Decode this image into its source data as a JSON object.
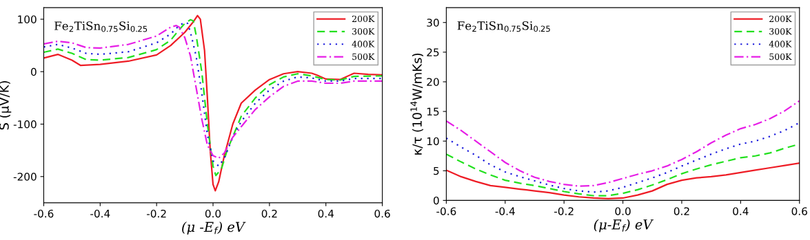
{
  "chart_data": [
    {
      "type": "line",
      "xlabel": "(μ -E$_{f}$) eV",
      "ylabel": "S (μV/K)",
      "annotations": [
        "Fe$_{2}$TiSn$_{0.75}$Si$_{0.25}$"
      ],
      "xlim": [
        -0.6,
        0.6
      ],
      "xticks": [
        -0.6,
        -0.4,
        -0.2,
        {
          "value": 0,
          "label": "0.0"
        },
        0.2,
        0.4,
        0.6
      ],
      "ylim": [
        -250,
        122
      ],
      "yticks": [
        -200,
        -100,
        0,
        100
      ],
      "legend": "top right",
      "series": [
        {
          "name": "200K",
          "color": "#ee1c25",
          "line_style": "solid",
          "x": [
            -0.6,
            -0.55,
            -0.5,
            -0.47,
            -0.4,
            -0.3,
            -0.2,
            -0.15,
            -0.1,
            -0.07,
            -0.055,
            -0.045,
            -0.03,
            -0.02,
            -0.01,
            0.0,
            0.008,
            0.02,
            0.04,
            0.07,
            0.1,
            0.15,
            0.2,
            0.25,
            0.3,
            0.35,
            0.37,
            0.4,
            0.45,
            0.5,
            0.55,
            0.6
          ],
          "values": [
            26,
            33,
            22,
            12,
            14,
            20,
            32,
            50,
            75,
            95,
            107,
            100,
            40,
            -50,
            -150,
            -215,
            -227,
            -210,
            -160,
            -100,
            -60,
            -35,
            -15,
            -4,
            0,
            -3,
            -7,
            -14,
            -15,
            -3,
            -5,
            -6
          ]
        },
        {
          "name": "300K",
          "color": "#22e01e",
          "line_style": "dashed",
          "x": [
            -0.6,
            -0.55,
            -0.5,
            -0.45,
            -0.4,
            -0.3,
            -0.2,
            -0.15,
            -0.12,
            -0.1,
            -0.08,
            -0.07,
            -0.06,
            -0.04,
            -0.02,
            0.0,
            0.01,
            0.03,
            0.05,
            0.1,
            0.15,
            0.2,
            0.25,
            0.3,
            0.35,
            0.4,
            0.45,
            0.5,
            0.6
          ],
          "values": [
            37,
            43,
            35,
            23,
            22,
            27,
            42,
            60,
            80,
            92,
            99,
            97,
            70,
            0,
            -100,
            -180,
            -198,
            -185,
            -150,
            -85,
            -50,
            -25,
            -10,
            -4,
            -8,
            -15,
            -16,
            -9,
            -8
          ]
        },
        {
          "name": "400K",
          "color": "#1a1adc",
          "line_style": "dotted",
          "x": [
            -0.6,
            -0.55,
            -0.5,
            -0.45,
            -0.4,
            -0.3,
            -0.2,
            -0.15,
            -0.12,
            -0.1,
            -0.09,
            -0.08,
            -0.06,
            -0.04,
            -0.02,
            0.0,
            0.02,
            0.04,
            0.07,
            0.1,
            0.15,
            0.2,
            0.25,
            0.3,
            0.35,
            0.4,
            0.45,
            0.5,
            0.6
          ],
          "values": [
            47,
            52,
            45,
            35,
            33,
            38,
            55,
            72,
            88,
            94,
            92,
            75,
            30,
            -40,
            -120,
            -170,
            -180,
            -165,
            -125,
            -95,
            -60,
            -35,
            -18,
            -10,
            -12,
            -18,
            -18,
            -13,
            -13
          ]
        },
        {
          "name": "500K",
          "color": "#e61ee6",
          "line_style": "dashdot",
          "x": [
            -0.6,
            -0.55,
            -0.5,
            -0.45,
            -0.4,
            -0.3,
            -0.2,
            -0.15,
            -0.13,
            -0.12,
            -0.1,
            -0.08,
            -0.06,
            -0.04,
            -0.02,
            0.0,
            0.02,
            0.04,
            0.07,
            0.1,
            0.15,
            0.2,
            0.25,
            0.3,
            0.35,
            0.4,
            0.45,
            0.5,
            0.6
          ],
          "values": [
            53,
            58,
            55,
            46,
            45,
            52,
            68,
            85,
            88,
            85,
            65,
            30,
            -30,
            -90,
            -140,
            -160,
            -165,
            -155,
            -125,
            -105,
            -72,
            -48,
            -28,
            -18,
            -18,
            -22,
            -22,
            -18,
            -18
          ]
        }
      ]
    },
    {
      "type": "line",
      "xlabel": "(μ-E$_{f}$) eV",
      "ylabel": "κ/τ (10$^{14}$W/mKs)",
      "annotations": [
        "Fe$_{2}$TiSn$_{0.75}$Si$_{0.25}$"
      ],
      "xlim": [
        -0.6,
        0.6
      ],
      "xticks": [
        -0.6,
        -0.4,
        -0.2,
        {
          "value": 0,
          "label": "0.0"
        },
        0.2,
        0.4,
        0.6
      ],
      "ylim": [
        0,
        32.5
      ],
      "yticks": [
        0,
        5,
        10,
        15,
        20,
        25,
        30
      ],
      "legend": "top right",
      "x": [
        -0.6,
        -0.55,
        -0.5,
        -0.45,
        -0.4,
        -0.35,
        -0.3,
        -0.25,
        -0.2,
        -0.15,
        -0.1,
        -0.05,
        0.0,
        0.05,
        0.1,
        0.15,
        0.2,
        0.25,
        0.3,
        0.35,
        0.4,
        0.45,
        0.5,
        0.55,
        0.6
      ],
      "series": [
        {
          "name": "200K",
          "color": "#ee1c25",
          "line_style": "solid",
          "values": [
            5.1,
            4.0,
            3.2,
            2.5,
            2.2,
            1.9,
            1.6,
            1.3,
            0.9,
            0.6,
            0.4,
            0.3,
            0.4,
            0.9,
            1.6,
            2.7,
            3.4,
            3.8,
            4.0,
            4.3,
            4.7,
            5.1,
            5.5,
            5.9,
            6.3
          ]
        },
        {
          "name": "300K",
          "color": "#22e01e",
          "line_style": "dashed",
          "values": [
            7.8,
            6.5,
            5.3,
            4.3,
            3.4,
            2.9,
            2.5,
            2.0,
            1.5,
            1.1,
            0.8,
            0.8,
            1.2,
            1.8,
            2.6,
            3.5,
            4.5,
            5.3,
            6.0,
            6.6,
            7.2,
            7.5,
            8.0,
            8.8,
            9.5
          ]
        },
        {
          "name": "400K",
          "color": "#1a1adc",
          "line_style": "dotted",
          "values": [
            10.5,
            9.0,
            7.6,
            6.0,
            4.8,
            4.0,
            3.3,
            2.6,
            2.0,
            1.6,
            1.4,
            1.6,
            2.2,
            3.0,
            3.8,
            4.7,
            5.8,
            6.8,
            7.8,
            8.7,
            9.5,
            10.0,
            10.8,
            11.8,
            13.1
          ]
        },
        {
          "name": "500K",
          "color": "#e61ee6",
          "line_style": "dashdot",
          "values": [
            13.4,
            11.8,
            10.0,
            8.2,
            6.4,
            5.0,
            3.9,
            3.2,
            2.7,
            2.4,
            2.5,
            3.0,
            3.7,
            4.4,
            5.0,
            5.8,
            6.9,
            8.2,
            9.7,
            11.0,
            12.1,
            12.8,
            13.8,
            15.1,
            16.8
          ]
        }
      ]
    }
  ]
}
